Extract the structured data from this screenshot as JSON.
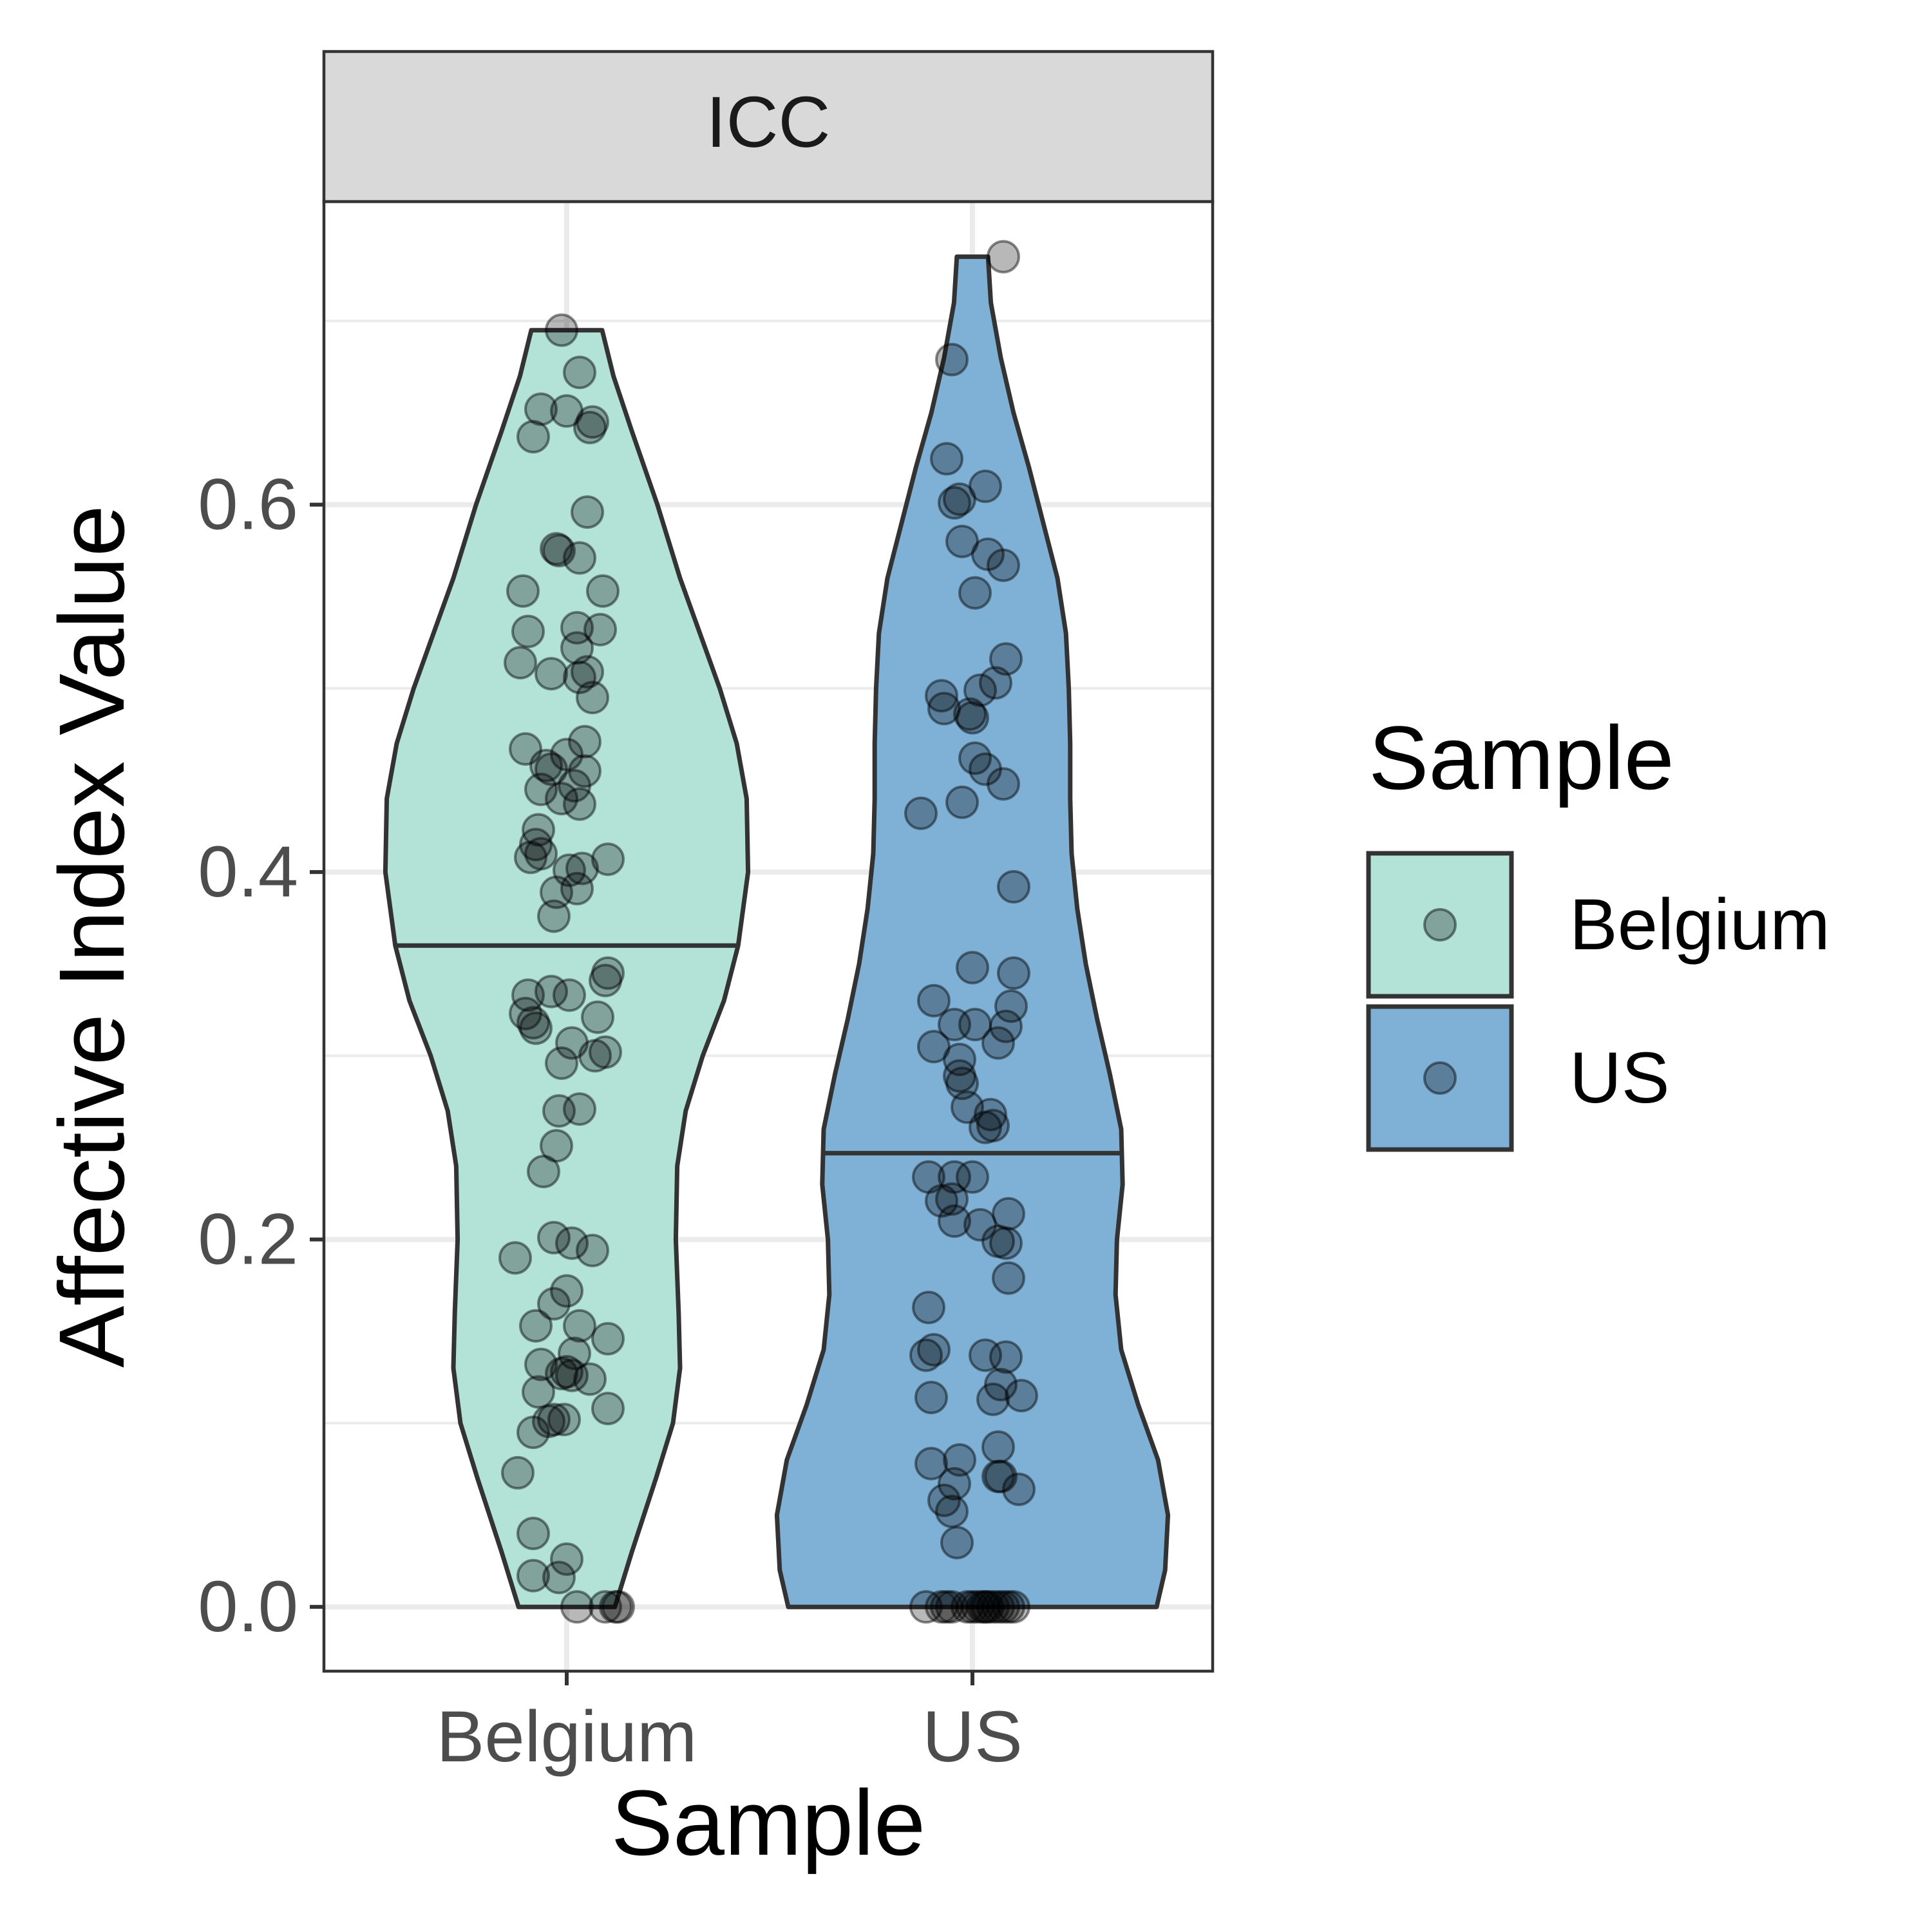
{
  "chart_data": {
    "type": "violin",
    "facet_label": "ICC",
    "xlabel": "Sample",
    "ylabel": "Affective Index Value",
    "categories": [
      "Belgium",
      "US"
    ],
    "ylim": [
      -0.035,
      0.765
    ],
    "yticks": [
      0.0,
      0.2,
      0.4,
      0.6
    ],
    "ytick_labels": [
      "0.0",
      "0.2",
      "0.4",
      "0.6"
    ],
    "grid": true,
    "legend": {
      "title": "Sample",
      "position": "right",
      "entries": [
        "Belgium",
        "US"
      ]
    },
    "colors": {
      "Belgium": "#b3e2d7",
      "US": "#7fb1d6",
      "outline": "#333333",
      "points": "#000000",
      "strip": "#d9d9d9"
    },
    "series": [
      {
        "name": "Belgium",
        "median": 0.36,
        "min": 0.0,
        "max": 0.695,
        "density": [
          [
            0.0,
            0.034
          ],
          [
            0.03,
            0.046
          ],
          [
            0.07,
            0.063
          ],
          [
            0.1,
            0.075
          ],
          [
            0.13,
            0.08
          ],
          [
            0.16,
            0.079
          ],
          [
            0.2,
            0.077
          ],
          [
            0.24,
            0.078
          ],
          [
            0.27,
            0.084
          ],
          [
            0.3,
            0.096
          ],
          [
            0.33,
            0.111
          ],
          [
            0.36,
            0.121
          ],
          [
            0.4,
            0.128
          ],
          [
            0.44,
            0.127
          ],
          [
            0.47,
            0.12
          ],
          [
            0.5,
            0.108
          ],
          [
            0.53,
            0.094
          ],
          [
            0.56,
            0.08
          ],
          [
            0.6,
            0.064
          ],
          [
            0.64,
            0.046
          ],
          [
            0.67,
            0.033
          ],
          [
            0.695,
            0.025
          ]
        ],
        "points": [
          [
            -0.02,
            0.695
          ],
          [
            0.05,
            0.672
          ],
          [
            -0.1,
            0.652
          ],
          [
            0.0,
            0.651
          ],
          [
            0.1,
            0.645
          ],
          [
            0.09,
            0.642
          ],
          [
            -0.13,
            0.637
          ],
          [
            0.08,
            0.596
          ],
          [
            -0.04,
            0.576
          ],
          [
            -0.03,
            0.575
          ],
          [
            0.05,
            0.571
          ],
          [
            -0.17,
            0.553
          ],
          [
            0.14,
            0.553
          ],
          [
            -0.15,
            0.531
          ],
          [
            0.04,
            0.533
          ],
          [
            0.13,
            0.532
          ],
          [
            0.04,
            0.522
          ],
          [
            -0.18,
            0.514
          ],
          [
            -0.06,
            0.508
          ],
          [
            0.08,
            0.509
          ],
          [
            0.05,
            0.506
          ],
          [
            0.1,
            0.495
          ],
          [
            0.07,
            0.471
          ],
          [
            -0.16,
            0.467
          ],
          [
            0.0,
            0.464
          ],
          [
            -0.08,
            0.458
          ],
          [
            -0.06,
            0.456
          ],
          [
            0.07,
            0.455
          ],
          [
            -0.1,
            0.445
          ],
          [
            -0.02,
            0.44
          ],
          [
            0.03,
            0.447
          ],
          [
            0.05,
            0.437
          ],
          [
            -0.11,
            0.423
          ],
          [
            -0.12,
            0.415
          ],
          [
            -0.1,
            0.41
          ],
          [
            -0.14,
            0.408
          ],
          [
            0.16,
            0.407
          ],
          [
            0.06,
            0.402
          ],
          [
            0.01,
            0.401
          ],
          [
            -0.04,
            0.389
          ],
          [
            0.04,
            0.391
          ],
          [
            -0.05,
            0.376
          ],
          [
            0.16,
            0.345
          ],
          [
            0.15,
            0.341
          ],
          [
            -0.15,
            0.333
          ],
          [
            -0.06,
            0.335
          ],
          [
            0.01,
            0.333
          ],
          [
            -0.16,
            0.323
          ],
          [
            0.12,
            0.321
          ],
          [
            -0.13,
            0.318
          ],
          [
            -0.12,
            0.315
          ],
          [
            0.02,
            0.307
          ],
          [
            0.15,
            0.302
          ],
          [
            0.11,
            0.3
          ],
          [
            -0.02,
            0.296
          ],
          [
            0.05,
            0.271
          ],
          [
            -0.03,
            0.27
          ],
          [
            -0.04,
            0.251
          ],
          [
            -0.09,
            0.237
          ],
          [
            -0.05,
            0.201
          ],
          [
            0.02,
            0.198
          ],
          [
            0.1,
            0.194
          ],
          [
            -0.2,
            0.19
          ],
          [
            0.0,
            0.172
          ],
          [
            -0.05,
            0.165
          ],
          [
            -0.12,
            0.153
          ],
          [
            0.05,
            0.153
          ],
          [
            0.16,
            0.146
          ],
          [
            0.03,
            0.138
          ],
          [
            -0.1,
            0.132
          ],
          [
            0.0,
            0.128
          ],
          [
            -0.02,
            0.127
          ],
          [
            0.02,
            0.126
          ],
          [
            0.09,
            0.124
          ],
          [
            -0.11,
            0.117
          ],
          [
            0.16,
            0.108
          ],
          [
            -0.05,
            0.102
          ],
          [
            -0.07,
            0.101
          ],
          [
            -0.01,
            0.102
          ],
          [
            -0.13,
            0.095
          ],
          [
            -0.19,
            0.073
          ],
          [
            -0.13,
            0.04
          ],
          [
            0.0,
            0.026
          ],
          [
            -0.13,
            0.017
          ],
          [
            -0.03,
            0.016
          ],
          [
            0.04,
            0.0
          ],
          [
            0.15,
            0.0
          ],
          [
            0.19,
            0.0
          ],
          [
            0.2,
            0.0
          ]
        ]
      },
      {
        "name": "US",
        "median": 0.247,
        "min": 0.0,
        "max": 0.735,
        "density": [
          [
            0.0,
            0.13
          ],
          [
            0.02,
            0.136
          ],
          [
            0.05,
            0.138
          ],
          [
            0.08,
            0.131
          ],
          [
            0.11,
            0.117
          ],
          [
            0.14,
            0.105
          ],
          [
            0.17,
            0.101
          ],
          [
            0.2,
            0.102
          ],
          [
            0.23,
            0.106
          ],
          [
            0.26,
            0.105
          ],
          [
            0.29,
            0.097
          ],
          [
            0.32,
            0.088
          ],
          [
            0.35,
            0.08
          ],
          [
            0.38,
            0.074
          ],
          [
            0.41,
            0.07
          ],
          [
            0.44,
            0.069
          ],
          [
            0.47,
            0.069
          ],
          [
            0.5,
            0.068
          ],
          [
            0.53,
            0.066
          ],
          [
            0.56,
            0.06
          ],
          [
            0.59,
            0.05
          ],
          [
            0.62,
            0.04
          ],
          [
            0.65,
            0.029
          ],
          [
            0.68,
            0.02
          ],
          [
            0.71,
            0.013
          ],
          [
            0.735,
            0.011
          ]
        ],
        "points": [
          [
            0.12,
            0.735
          ],
          [
            -0.08,
            0.679
          ],
          [
            -0.1,
            0.625
          ],
          [
            -0.05,
            0.603
          ],
          [
            -0.07,
            0.601
          ],
          [
            0.05,
            0.61
          ],
          [
            -0.04,
            0.58
          ],
          [
            0.06,
            0.573
          ],
          [
            0.12,
            0.567
          ],
          [
            0.01,
            0.552
          ],
          [
            0.13,
            0.516
          ],
          [
            0.09,
            0.503
          ],
          [
            -0.12,
            0.496
          ],
          [
            0.03,
            0.499
          ],
          [
            -0.11,
            0.489
          ],
          [
            -0.01,
            0.486
          ],
          [
            0.0,
            0.484
          ],
          [
            0.01,
            0.462
          ],
          [
            0.05,
            0.456
          ],
          [
            0.12,
            0.448
          ],
          [
            -0.04,
            0.438
          ],
          [
            -0.2,
            0.432
          ],
          [
            0.16,
            0.392
          ],
          [
            0.0,
            0.348
          ],
          [
            0.16,
            0.345
          ],
          [
            -0.15,
            0.33
          ],
          [
            0.15,
            0.327
          ],
          [
            0.13,
            0.316
          ],
          [
            -0.07,
            0.317
          ],
          [
            0.01,
            0.317
          ],
          [
            0.1,
            0.307
          ],
          [
            -0.15,
            0.305
          ],
          [
            -0.05,
            0.298
          ],
          [
            -0.05,
            0.289
          ],
          [
            -0.04,
            0.285
          ],
          [
            -0.02,
            0.272
          ],
          [
            0.07,
            0.268
          ],
          [
            0.08,
            0.262
          ],
          [
            0.05,
            0.261
          ],
          [
            -0.17,
            0.234
          ],
          [
            -0.07,
            0.234
          ],
          [
            0.0,
            0.234
          ],
          [
            -0.08,
            0.222
          ],
          [
            -0.12,
            0.221
          ],
          [
            0.14,
            0.214
          ],
          [
            -0.07,
            0.21
          ],
          [
            0.03,
            0.208
          ],
          [
            0.1,
            0.199
          ],
          [
            0.13,
            0.198
          ],
          [
            0.14,
            0.179
          ],
          [
            -0.17,
            0.163
          ],
          [
            -0.15,
            0.14
          ],
          [
            -0.18,
            0.137
          ],
          [
            0.05,
            0.137
          ],
          [
            0.13,
            0.136
          ],
          [
            0.11,
            0.121
          ],
          [
            0.19,
            0.115
          ],
          [
            -0.16,
            0.114
          ],
          [
            0.08,
            0.113
          ],
          [
            0.1,
            0.087
          ],
          [
            -0.05,
            0.08
          ],
          [
            -0.16,
            0.078
          ],
          [
            0.11,
            0.071
          ],
          [
            0.1,
            0.071
          ],
          [
            0.18,
            0.064
          ],
          [
            -0.07,
            0.067
          ],
          [
            -0.11,
            0.058
          ],
          [
            -0.08,
            0.052
          ],
          [
            -0.06,
            0.035
          ],
          [
            -0.18,
            0.0
          ],
          [
            -0.1,
            0.0
          ],
          [
            -0.12,
            0.0
          ],
          [
            -0.08,
            0.0
          ],
          [
            -0.02,
            0.0
          ],
          [
            0.0,
            0.0
          ],
          [
            0.02,
            0.0
          ],
          [
            0.04,
            0.0
          ],
          [
            0.06,
            0.0
          ],
          [
            0.08,
            0.0
          ],
          [
            0.1,
            0.0
          ],
          [
            0.12,
            0.0
          ],
          [
            0.14,
            0.0
          ],
          [
            0.16,
            0.0
          ],
          [
            0.05,
            0.0
          ]
        ]
      }
    ]
  }
}
